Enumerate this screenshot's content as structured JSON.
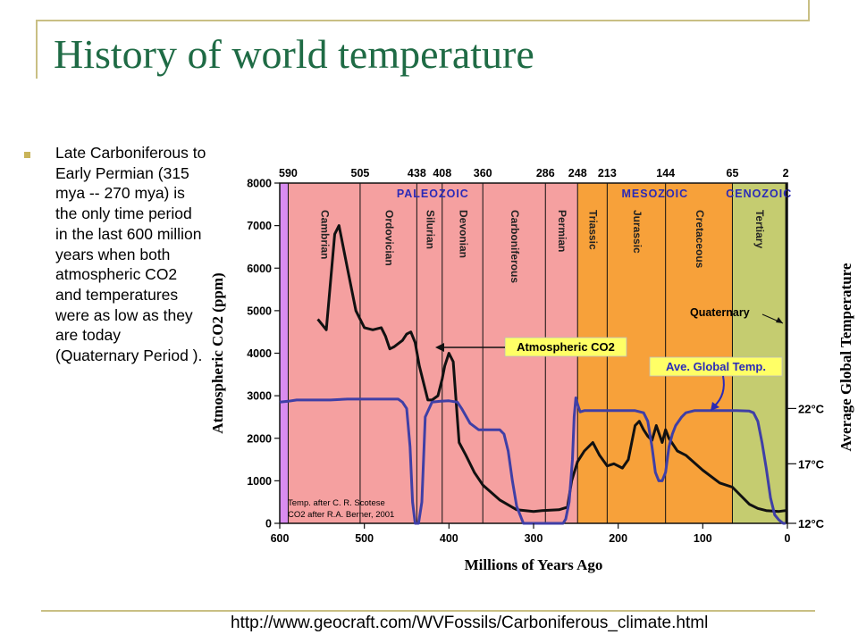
{
  "slide": {
    "title": "History of world temperature",
    "bullet": "Late Carboniferous to Early Permian (315 mya -- 270 mya) is the only time period in the last 600 million years when both atmospheric CO2 and temperatures were as low as they are today (Quaternary Period ).",
    "source_url": "http://www.geocraft.com/WVFossils/Carboniferous_climate.html"
  },
  "colors": {
    "title": "#1f6b45",
    "bullet_marker": "#c9b45a",
    "decor_line": "#c9bf84",
    "paleozoic_band": "#f5a0a0",
    "precambrian_band": "#d98cf0",
    "mesozoic_band": "#f7a13a",
    "cenozoic_band": "#c5cc70",
    "co2_line": "#111111",
    "temp_line": "#3f3fa6",
    "era_label": "#2a2ab8",
    "callout_bg": "#ffff66"
  },
  "chart_data": {
    "type": "line",
    "xlabel": "Millions of Years Ago",
    "ylabel": "Atmospheric CO2 (ppm)",
    "y2label": "Average Global Temperature",
    "xlim": [
      600,
      0
    ],
    "ylim": [
      0,
      8000
    ],
    "x_ticks": [
      "600",
      "500",
      "400",
      "300",
      "200",
      "100",
      "0"
    ],
    "x_tick_values": [
      600,
      500,
      400,
      300,
      200,
      100,
      0
    ],
    "y_ticks": [
      "0",
      "1000",
      "2000",
      "3000",
      "4000",
      "5000",
      "6000",
      "7000",
      "8000"
    ],
    "y_tick_values": [
      0,
      1000,
      2000,
      3000,
      4000,
      5000,
      6000,
      7000,
      8000
    ],
    "y2_ticks": [
      {
        "label": "22°C",
        "co2_equiv": 2700
      },
      {
        "label": "17°C",
        "co2_equiv": 1400
      },
      {
        "label": "12°C",
        "co2_equiv": 0
      }
    ],
    "boundaries": [
      {
        "label": "590",
        "value": 590
      },
      {
        "label": "505",
        "value": 505
      },
      {
        "label": "438",
        "value": 438
      },
      {
        "label": "408",
        "value": 408
      },
      {
        "label": "360",
        "value": 360
      },
      {
        "label": "286",
        "value": 286
      },
      {
        "label": "248",
        "value": 248
      },
      {
        "label": "213",
        "value": 213
      },
      {
        "label": "144",
        "value": 144
      },
      {
        "label": "65",
        "value": 65
      },
      {
        "label": "2",
        "value": 2
      }
    ],
    "eras": [
      {
        "name": "PALEOZOIC",
        "from": 590,
        "to": 248
      },
      {
        "name": "MESOZOIC",
        "from": 248,
        "to": 65
      },
      {
        "name": "CENOZOIC",
        "from": 65,
        "to": 2
      }
    ],
    "periods": [
      {
        "name": "Cambrian",
        "from": 590,
        "to": 505
      },
      {
        "name": "Ordovician",
        "from": 505,
        "to": 438
      },
      {
        "name": "Silurian",
        "from": 438,
        "to": 408
      },
      {
        "name": "Devonian",
        "from": 408,
        "to": 360
      },
      {
        "name": "Carboniferous",
        "from": 360,
        "to": 286
      },
      {
        "name": "Permian",
        "from": 286,
        "to": 248
      },
      {
        "name": "Triassic",
        "from": 248,
        "to": 213
      },
      {
        "name": "Jurassic",
        "from": 213,
        "to": 144
      },
      {
        "name": "Cretaceous",
        "from": 144,
        "to": 65
      },
      {
        "name": "Tertiary",
        "from": 65,
        "to": 2
      }
    ],
    "annotations": {
      "quaternary": "Quaternary",
      "co2_callout": "Atmospheric CO2",
      "temp_callout": "Ave. Global Temp.",
      "credit_1": "Temp. after C. R. Scotese",
      "credit_2": "CO2 after R.A. Berner, 2001"
    },
    "series": [
      {
        "name": "Atmospheric CO2",
        "x": [
          555,
          545,
          535,
          530,
          520,
          510,
          500,
          490,
          480,
          475,
          470,
          465,
          455,
          450,
          445,
          440,
          435,
          425,
          420,
          413,
          408,
          405,
          400,
          395,
          388,
          380,
          370,
          360,
          340,
          320,
          300,
          290,
          280,
          270,
          260,
          255,
          248,
          240,
          230,
          222,
          213,
          205,
          195,
          188,
          180,
          175,
          170,
          165,
          160,
          155,
          148,
          144,
          140,
          130,
          120,
          100,
          80,
          65,
          55,
          45,
          35,
          25,
          10,
          2
        ],
        "y": [
          4800,
          4550,
          6800,
          7000,
          6000,
          5000,
          4600,
          4550,
          4600,
          4400,
          4100,
          4150,
          4300,
          4450,
          4500,
          4250,
          3700,
          2900,
          2900,
          3000,
          3400,
          3700,
          4000,
          3800,
          1900,
          1600,
          1200,
          900,
          550,
          320,
          280,
          300,
          310,
          320,
          380,
          1000,
          1450,
          1700,
          1900,
          1600,
          1350,
          1400,
          1300,
          1500,
          2300,
          2400,
          2200,
          2050,
          1950,
          2300,
          1900,
          2200,
          2000,
          1700,
          1600,
          1250,
          950,
          850,
          650,
          450,
          350,
          300,
          280,
          300
        ]
      },
      {
        "name": "Ave. Global Temp.",
        "x": [
          600,
          590,
          580,
          560,
          540,
          520,
          500,
          480,
          460,
          455,
          450,
          446,
          443,
          440,
          436,
          432,
          428,
          420,
          410,
          400,
          390,
          385,
          375,
          365,
          350,
          340,
          335,
          330,
          325,
          320,
          312,
          295,
          285,
          265,
          262,
          258,
          254,
          252,
          250,
          248,
          245,
          240,
          230,
          220,
          200,
          180,
          170,
          165,
          160,
          156,
          152,
          148,
          144,
          140,
          136,
          132,
          125,
          120,
          110,
          100,
          80,
          60,
          45,
          40,
          35,
          30,
          25,
          20,
          15,
          10,
          5,
          2
        ],
        "y": [
          2850,
          2870,
          2900,
          2900,
          2900,
          2920,
          2920,
          2920,
          2920,
          2850,
          2700,
          1800,
          500,
          0,
          0,
          500,
          2500,
          2850,
          2870,
          2880,
          2850,
          2700,
          2350,
          2200,
          2200,
          2200,
          2100,
          1700,
          1000,
          400,
          0,
          0,
          0,
          0,
          100,
          500,
          1500,
          2500,
          2950,
          2800,
          2620,
          2650,
          2650,
          2650,
          2650,
          2650,
          2600,
          2400,
          1800,
          1200,
          1000,
          1000,
          1200,
          1800,
          2100,
          2300,
          2500,
          2600,
          2650,
          2650,
          2650,
          2650,
          2640,
          2600,
          2400,
          1900,
          1300,
          600,
          200,
          80,
          0,
          0
        ]
      }
    ]
  }
}
